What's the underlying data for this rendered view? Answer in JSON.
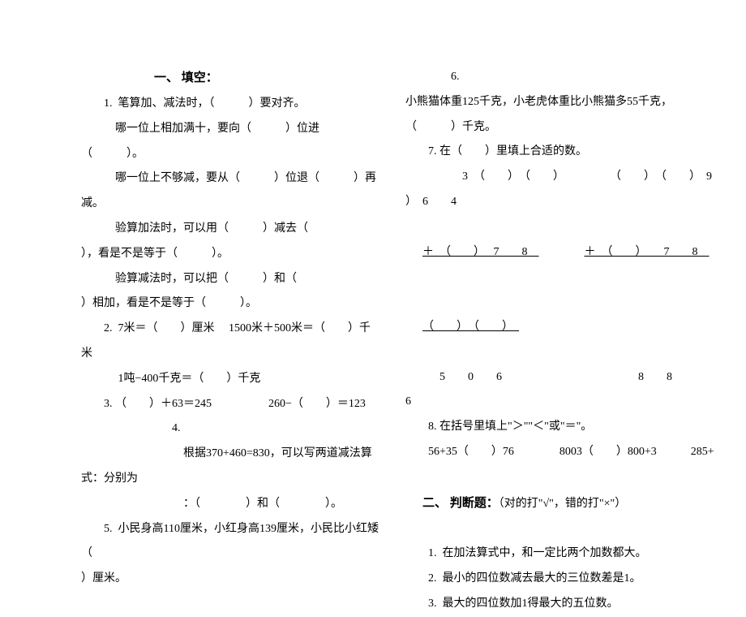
{
  "left": {
    "heading": "一、 填空：",
    "q1_a": "1.  笔算加、减法时，（　　　）要对齐。",
    "q1_b": "哪一位上相加满十，要向（　　　）位进（　　　）。",
    "q1_c": "哪一位上不够减，要从（　　　）位退（　　　）再减。",
    "q1_d": "验算加法时，可以用（　　　）减去（",
    "q1_e": "），看是不是等于（　　　）。",
    "q1_f": "验算减法时，可以把（　　　）和（",
    "q1_g": "）相加，看是不是等于（　　　）。",
    "q2_a": "2.  7米＝（　　）厘米　 1500米＋500米＝（　　）千米",
    "q2_b": " 1吨−400千克＝（　　）千克",
    "q3": "3. （　　）＋63＝245　　　　　260−（　　）＝123",
    "q4_a": "4.",
    "q4_b": "根据370+460=830，可以写两道减法算式：分别为",
    "q4_c": "：（　　　　）和（　　　　）。",
    "q5_a": "5.  小民身高110厘米，小红身高139厘米，小民比小红矮（",
    "q5_b": "）厘米。"
  },
  "right": {
    "q6_a": "6.",
    "q6_b": "小熊猫体重125千克，小老虎体重比小熊猫多55千克，",
    "q6_c": "（　　　）千克。",
    "q7_a": "7. 在（　　）里填上合适的数。",
    "q7_b": "3　（　　）　（　　）　　　　　（　　）　（　　）　9　",
    "q7_c": "）　6　　4",
    "q7_d_u": "＋　（　　）　 7　　8　",
    "q7_d_gap": "　　　　",
    "q7_d_u2": "＋　（　　）　　7　　8　",
    "q7_e_u": "（　　）　（　　）　",
    "q7_f": "5　　0　　6　　　　　　　　　　　　8　　8　　",
    "q7_g": "6",
    "q8_a": "8. 在括号里填上\"＞\"\"＜\"或\"＝\"。",
    "q8_b": "56+35（　　）76　　　　8003（　　）800+3　　　285+",
    "heading2_a": "二、 判断题：",
    "heading2_b": "（对的打\"√\"，错的打\"×\"）",
    "j1": "1.  在加法算式中，和一定比两个加数都大。",
    "j2": "2.  最小的四位数减去最大的三位数差是1。",
    "j3": "3.  最大的四位数加1得最大的五位数。"
  }
}
